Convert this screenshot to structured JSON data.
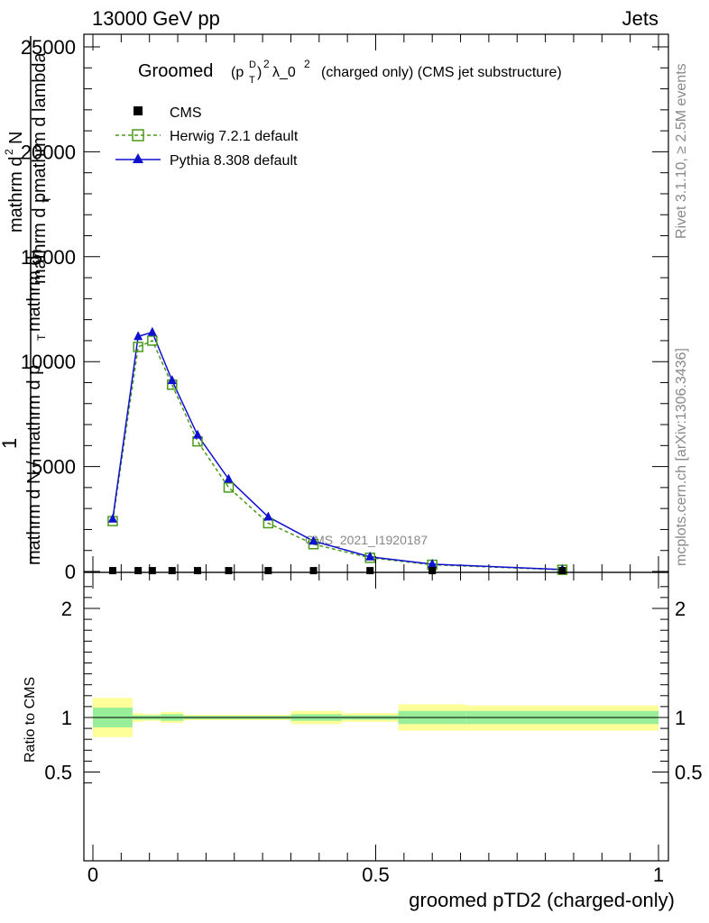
{
  "header": {
    "left": "13000 GeV pp",
    "right": "Jets"
  },
  "side_labels": {
    "rivet": "Rivet 3.1.10, ≥ 2.5M events",
    "mcplots": "mcplots.cern.ch [arXiv:1306.3436]"
  },
  "title": {
    "main": "Groomed",
    "p": "(p",
    "sup_d": "D",
    "sub_t": "T",
    "close": ")",
    "sup2": "2",
    "lambda": "λ_0",
    "sup2b": "2",
    "rest": "(charged only) (CMS jet substructure)"
  },
  "ylabel_main": {
    "one": "1",
    "numerator": "mathrm d",
    "numerator_sup": "2",
    "numerator_n": "N",
    "denominator": "mathrm d p",
    "denominator_sub": "T",
    "denominator_rest": " mathrm d lambda",
    "left": "mathrm d N / mathrm d p",
    "left_sub": "T",
    "left_rest": " mathrm d"
  },
  "watermark": "CMS_2021_I1920187",
  "colors": {
    "herwig": "#4a9a1a",
    "pythia": "#1010d0",
    "cms": "#000000",
    "band_inner": "#99ee99",
    "band_outer": "#ffff99"
  },
  "chart_data": [
    {
      "type": "line",
      "xlabel": "groomed pTD2 (charged-only)",
      "xlim": [
        0,
        1
      ],
      "ylim": [
        0,
        25000
      ],
      "x_ticks": [
        "0",
        "0.5",
        "1"
      ],
      "y_ticks": [
        "0",
        "5000",
        "10000",
        "15000",
        "20000",
        "25000"
      ],
      "legend": [
        "CMS",
        "Herwig 7.2.1 default",
        "Pythia 8.308 default"
      ],
      "legend_position": "top-left",
      "x": [
        0.035,
        0.08,
        0.105,
        0.14,
        0.185,
        0.24,
        0.31,
        0.39,
        0.49,
        0.6,
        0.83
      ],
      "series": [
        {
          "name": "CMS",
          "values": [
            40,
            40,
            40,
            40,
            40,
            40,
            40,
            40,
            40,
            40,
            40
          ]
        },
        {
          "name": "Herwig 7.2.1 default",
          "values": [
            2400,
            10700,
            11000,
            8900,
            6200,
            4000,
            2300,
            1300,
            650,
            320,
            80
          ]
        },
        {
          "name": "Pythia 8.308 default",
          "values": [
            2500,
            11200,
            11400,
            9100,
            6500,
            4400,
            2600,
            1450,
            700,
            350,
            90
          ]
        }
      ]
    },
    {
      "type": "area",
      "ylabel": "Ratio to CMS",
      "xlim": [
        0,
        1
      ],
      "ylim": [
        0.3,
        2.3
      ],
      "y_ticks": [
        "0.5",
        "1",
        "2"
      ],
      "x_ticks": [
        "0",
        "0.5",
        "1"
      ],
      "bins": [
        {
          "lo": 0.0,
          "hi": 0.07,
          "inner": [
            0.91,
            1.09
          ],
          "outer": [
            0.82,
            1.18
          ]
        },
        {
          "lo": 0.07,
          "hi": 0.09,
          "inner": [
            0.98,
            1.02
          ],
          "outer": [
            0.96,
            1.04
          ]
        },
        {
          "lo": 0.09,
          "hi": 0.12,
          "inner": [
            0.98,
            1.02
          ],
          "outer": [
            0.97,
            1.03
          ]
        },
        {
          "lo": 0.12,
          "hi": 0.16,
          "inner": [
            0.97,
            1.03
          ],
          "outer": [
            0.95,
            1.05
          ]
        },
        {
          "lo": 0.16,
          "hi": 0.35,
          "inner": [
            0.985,
            1.015
          ],
          "outer": [
            0.975,
            1.025
          ]
        },
        {
          "lo": 0.35,
          "hi": 0.44,
          "inner": [
            0.97,
            1.03
          ],
          "outer": [
            0.94,
            1.06
          ]
        },
        {
          "lo": 0.44,
          "hi": 0.54,
          "inner": [
            0.98,
            1.02
          ],
          "outer": [
            0.96,
            1.04
          ]
        },
        {
          "lo": 0.54,
          "hi": 0.66,
          "inner": [
            0.94,
            1.06
          ],
          "outer": [
            0.88,
            1.12
          ]
        },
        {
          "lo": 0.66,
          "hi": 1.0,
          "inner": [
            0.94,
            1.06
          ],
          "outer": [
            0.88,
            1.11
          ]
        }
      ]
    }
  ]
}
